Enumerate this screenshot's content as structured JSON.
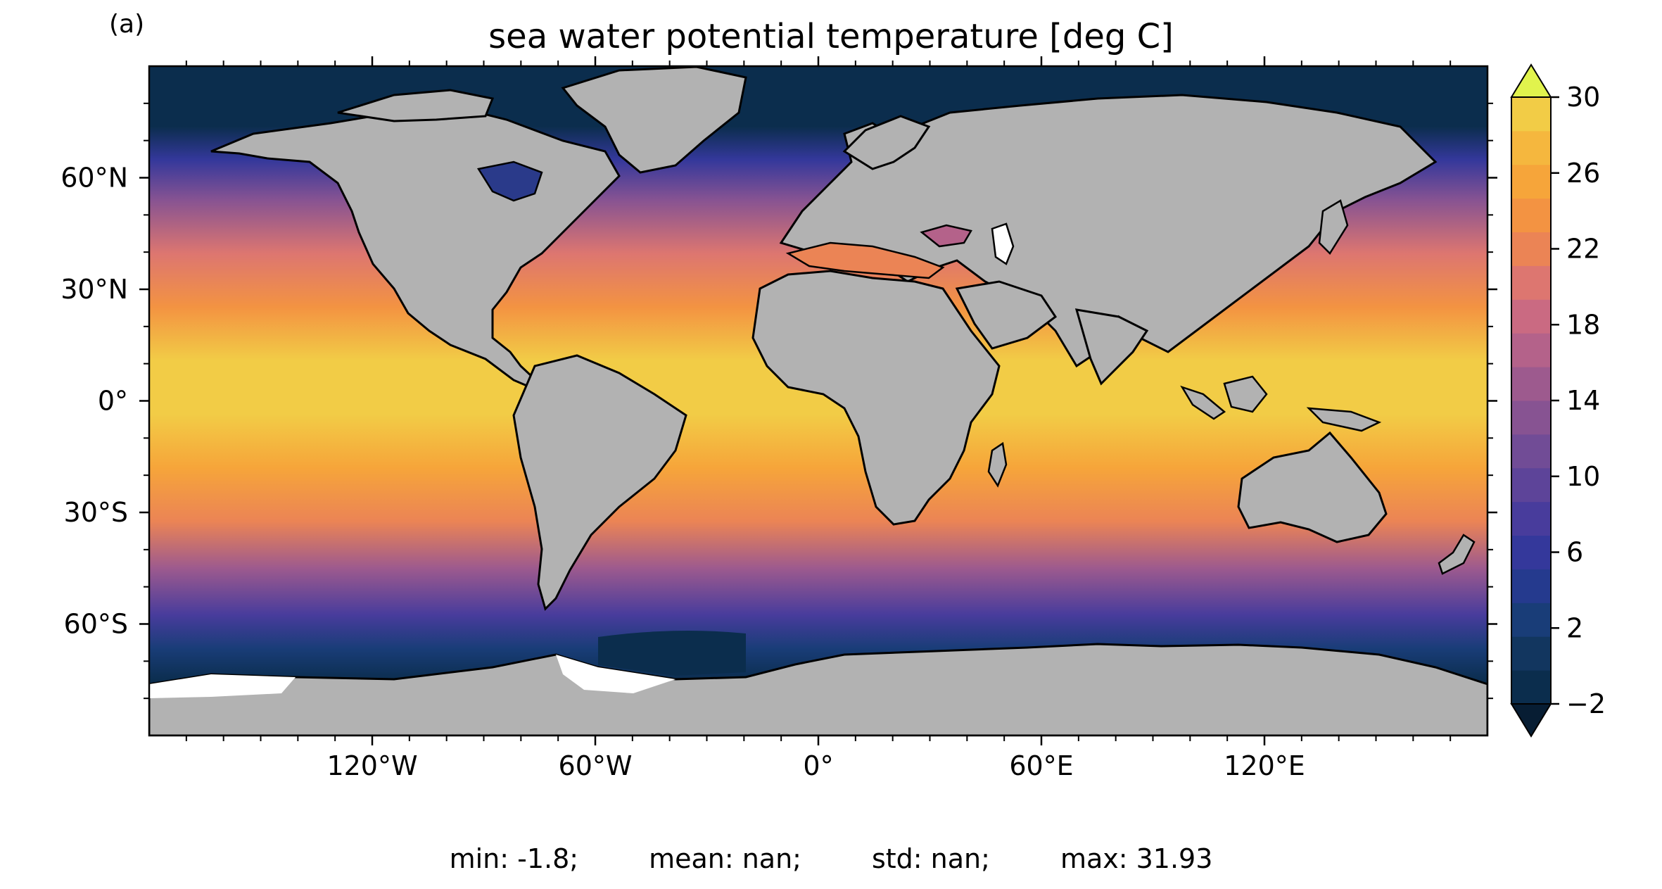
{
  "panel_label": "(a)",
  "title": "sea water potential temperature [deg C]",
  "stats": {
    "min": "min: -1.8;",
    "mean": "mean: nan;",
    "std": "std: nan;",
    "max": "max: 31.93"
  },
  "map": {
    "projection": "PlateCarree",
    "lon_ticks": [
      {
        "value": -120,
        "label": "120°W"
      },
      {
        "value": -60,
        "label": "60°W"
      },
      {
        "value": 0,
        "label": "0°"
      },
      {
        "value": 60,
        "label": "60°E"
      },
      {
        "value": 120,
        "label": "120°E"
      }
    ],
    "lat_ticks": [
      {
        "value": 60,
        "label": "60°N"
      },
      {
        "value": 30,
        "label": "30°N"
      },
      {
        "value": 0,
        "label": "0°"
      },
      {
        "value": -30,
        "label": "30°S"
      },
      {
        "value": -60,
        "label": "60°S"
      }
    ],
    "lon_range": [
      -180,
      180
    ],
    "lat_range": [
      -90,
      90
    ],
    "land_color": "#b2b2b2",
    "missing_color": "#ffffff",
    "coastline_color": "#000000"
  },
  "colorbar": {
    "min": -2,
    "max": 30,
    "step": 2,
    "extend": "both",
    "tick_labels": [
      "−2",
      "2",
      "6",
      "10",
      "14",
      "18",
      "22",
      "26",
      "30"
    ],
    "tick_values": [
      -2,
      2,
      6,
      10,
      14,
      18,
      22,
      26,
      30
    ],
    "colors": [
      "#0b2d4d",
      "#12365f",
      "#193d78",
      "#253a8e",
      "#34389b",
      "#483c9c",
      "#5d4499",
      "#714c96",
      "#875392",
      "#9d5a8e",
      "#b4628a",
      "#ca6a82",
      "#dd7670",
      "#eb8455",
      "#f39342",
      "#f6a53a",
      "#f5b73e",
      "#f2cc46"
    ],
    "under_color": "#071d33",
    "over_color": "#e1f34d"
  }
}
